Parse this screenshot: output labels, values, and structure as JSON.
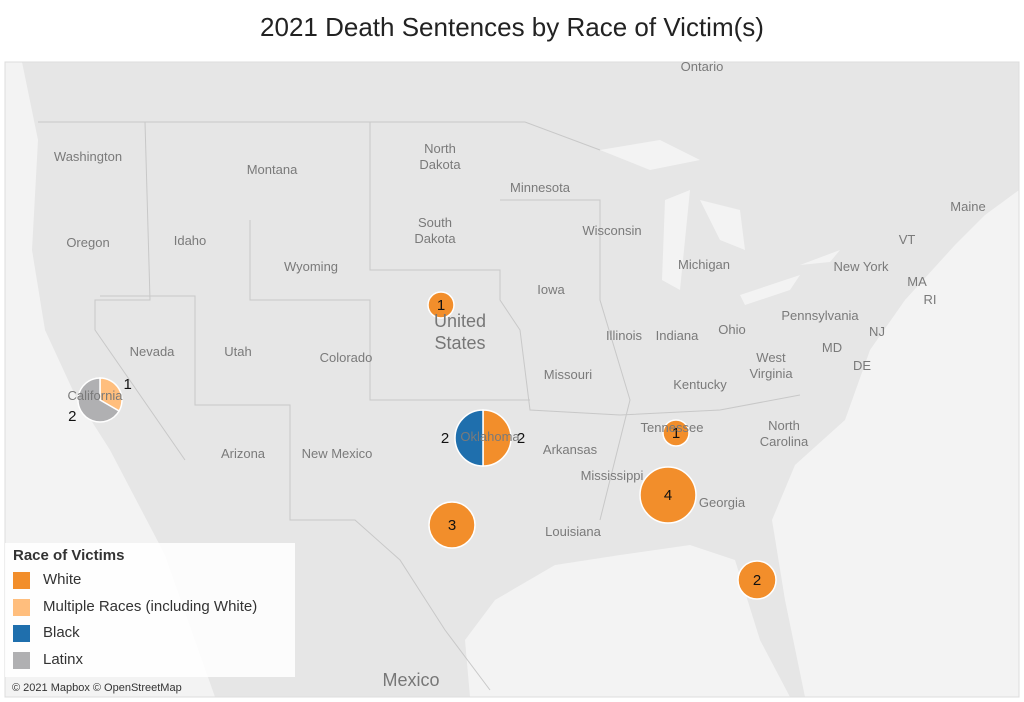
{
  "title": "2021 Death Sentences by Race of Victim(s)",
  "map_labels": [
    "Ontario",
    "Washington",
    "Montana",
    "North Dakota",
    "Minnesota",
    "Oregon",
    "Idaho",
    "South Dakota",
    "Wisconsin",
    "Maine",
    "Wyoming",
    "Michigan",
    "VT",
    "New York",
    "MA",
    "RI",
    "Iowa",
    "Nevada",
    "United States",
    "Pennsylvania",
    "NJ",
    "Illinois",
    "Indiana",
    "Ohio",
    "Utah",
    "Colorado",
    "MD",
    "DE",
    "Missouri",
    "West Virginia",
    "Kentucky",
    "California",
    "Tennessee",
    "Oklahoma",
    "Arizona",
    "New Mexico",
    "Arkansas",
    "North Carolina",
    "Mississippi",
    "Georgia",
    "Louisiana",
    "Mexico"
  ],
  "legend_title": "Race of Victims",
  "series": [
    {
      "name": "White",
      "color": "#f28e2b",
      "values": [
        1,
        null,
        2,
        1,
        4,
        3,
        2
      ]
    },
    {
      "name": "Multiple Races (including White)",
      "color": "#ffbe7d",
      "values": [
        null,
        1,
        null,
        null,
        null,
        null,
        null
      ]
    },
    {
      "name": "Black",
      "color": "#1f6fad",
      "values": [
        null,
        null,
        2,
        null,
        null,
        null,
        null
      ]
    },
    {
      "name": "Latinx",
      "color": "#b0b0b2",
      "values": [
        null,
        2,
        null,
        null,
        null,
        null,
        null
      ]
    }
  ],
  "attribution": "© 2021 Mapbox © OpenStreetMap"
}
